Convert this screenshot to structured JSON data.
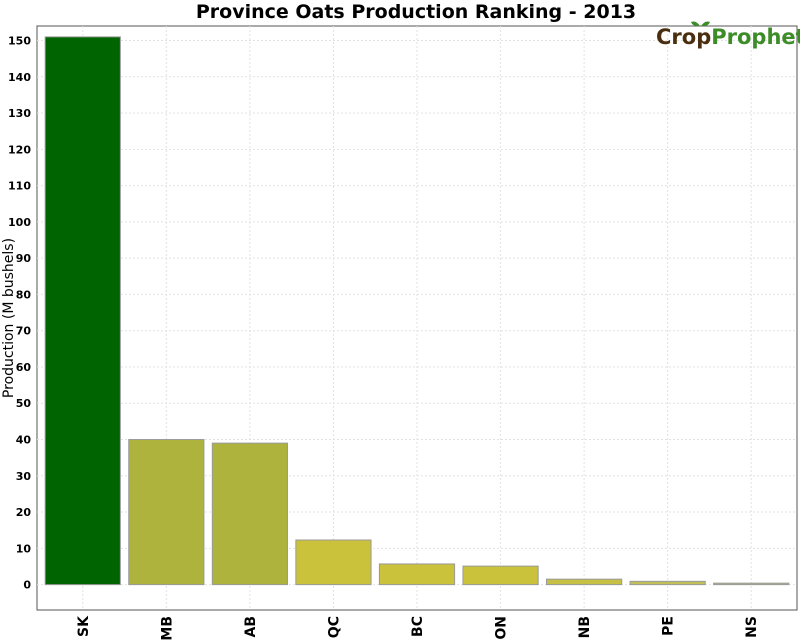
{
  "chart_data": {
    "type": "bar",
    "title": "Province Oats Production Ranking - 2013",
    "xlabel": "",
    "ylabel": "Production (M bushels)",
    "categories": [
      "SK",
      "MB",
      "AB",
      "QC",
      "BC",
      "ON",
      "NB",
      "PE",
      "NS"
    ],
    "values": [
      151,
      40,
      39,
      12.3,
      5.7,
      5.1,
      1.5,
      0.9,
      0.4
    ],
    "colors": [
      "#006400",
      "#adb33c",
      "#adb33c",
      "#c9c23a",
      "#c9c23a",
      "#c9c23a",
      "#c6c044",
      "#c2bf58",
      "#b9b98c"
    ],
    "ylim": [
      -7,
      154
    ],
    "yticks": [
      0,
      10,
      20,
      30,
      40,
      50,
      60,
      70,
      80,
      90,
      100,
      110,
      120,
      130,
      140,
      150
    ],
    "grid": true
  },
  "logo": {
    "part1": "Crop",
    "part2": "Prophet",
    "color1": "#4a2e10",
    "color2": "#3c8c28"
  }
}
